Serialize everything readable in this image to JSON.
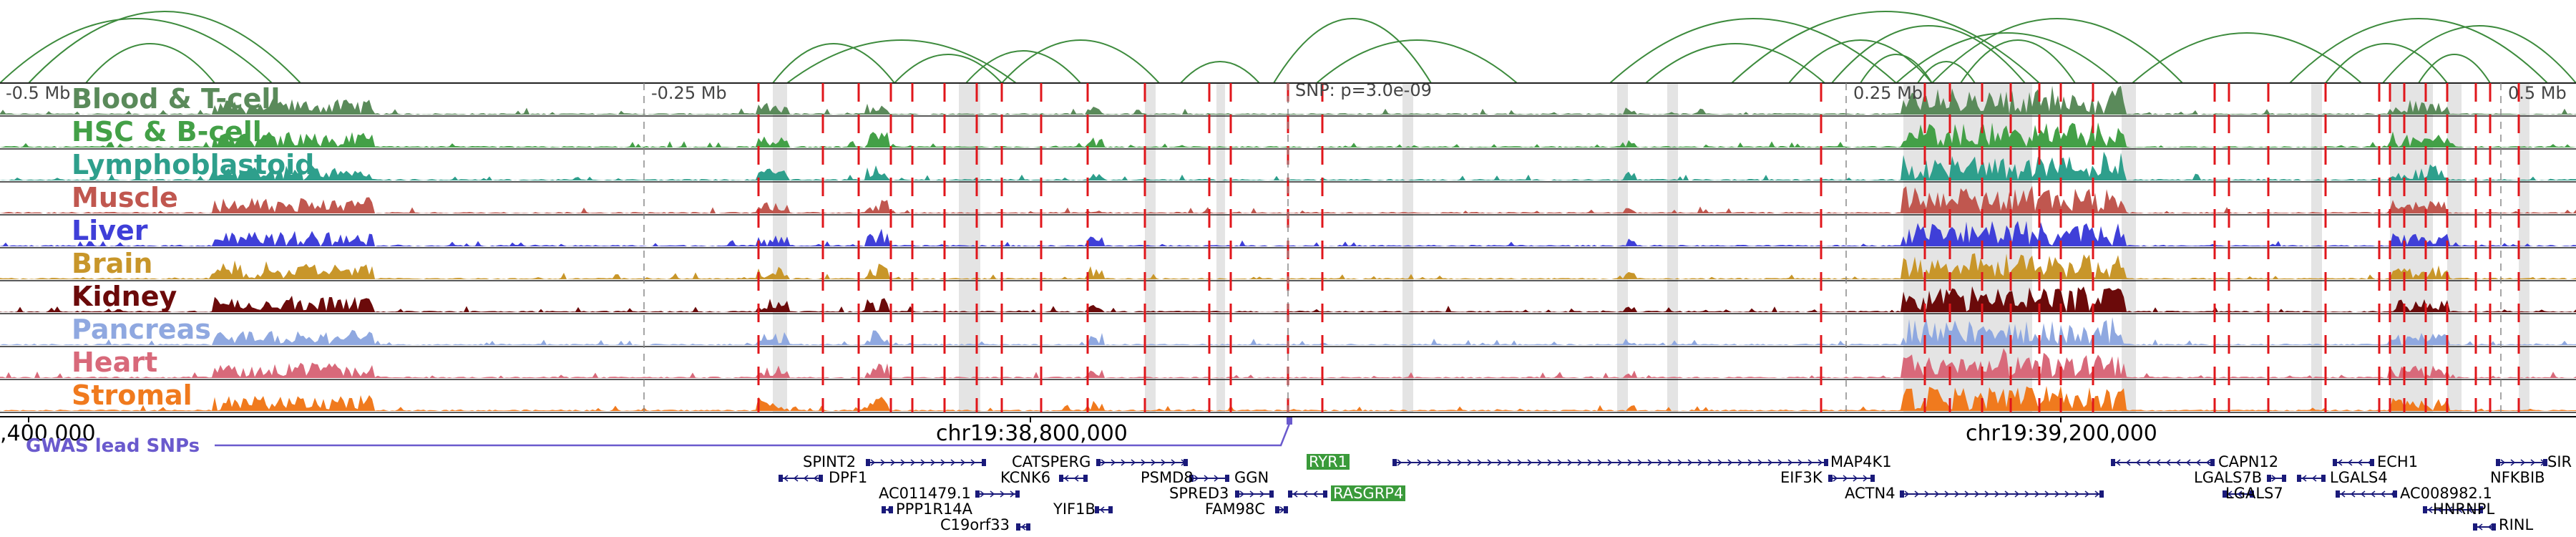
{
  "colors": {
    "arc": "#3d8b3d",
    "snp": "#e0161b",
    "gwas": "#6a5acd",
    "gene": "#1a1a7a",
    "highlight": "#3a9a3a",
    "shade": "#e4e4e4"
  },
  "tracks": [
    {
      "name": "Blood & T-cell",
      "color": "#5a8a5a"
    },
    {
      "name": "HSC & B-cell",
      "color": "#43a047"
    },
    {
      "name": "Lymphoblastoid",
      "color": "#2e9f8c"
    },
    {
      "name": "Muscle",
      "color": "#c0574f"
    },
    {
      "name": "Liver",
      "color": "#3f3fd8"
    },
    {
      "name": "Brain",
      "color": "#c8962a"
    },
    {
      "name": "Kidney",
      "color": "#6b0a0a"
    },
    {
      "name": "Pancreas",
      "color": "#8fa8e0"
    },
    {
      "name": "Heart",
      "color": "#d8697a"
    },
    {
      "name": "Stromal",
      "color": "#f07a1e"
    }
  ],
  "scale_labels": [
    "-0.5 Mb",
    "-0.25 Mb",
    "0.25 Mb",
    "0.5 Mb"
  ],
  "snp_label": "SNP: p=3.0e-09",
  "coords": [
    ",400,000",
    "chr19:38,800,000",
    "chr19:39,200,000"
  ],
  "gwas_label": "GWAS lead SNPs",
  "genes": [
    {
      "name": "SPINT2"
    },
    {
      "name": "DPF1"
    },
    {
      "name": "AC011479.1"
    },
    {
      "name": "PPP1R14A"
    },
    {
      "name": "C19orf33"
    },
    {
      "name": "CATSPERG"
    },
    {
      "name": "KCNK6"
    },
    {
      "name": "YIF1B"
    },
    {
      "name": "PSMD8"
    },
    {
      "name": "GGN"
    },
    {
      "name": "SPRED3"
    },
    {
      "name": "FAM98C"
    },
    {
      "name": "RYR1"
    },
    {
      "name": "RASGRP4"
    },
    {
      "name": "MAP4K1"
    },
    {
      "name": "EIF3K"
    },
    {
      "name": "ACTN4"
    },
    {
      "name": "CAPN12"
    },
    {
      "name": "LGALS7B"
    },
    {
      "name": "LGALS7"
    },
    {
      "name": "ECH1"
    },
    {
      "name": "LGALS4"
    },
    {
      "name": "AC008982.1"
    },
    {
      "name": "HNRNPL"
    },
    {
      "name": "RINL"
    },
    {
      "name": "NFKBIB"
    },
    {
      "name": "SIR"
    }
  ]
}
